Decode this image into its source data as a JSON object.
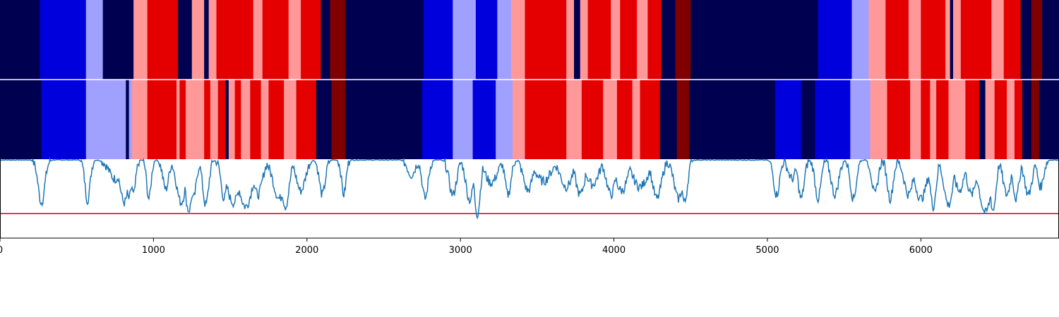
{
  "chart_data": {
    "type": "heatmap",
    "title": "",
    "xlabel": "",
    "ylabel": "",
    "xlim": [
      0,
      6900
    ],
    "x_ticks": [
      0,
      1000,
      2000,
      3000,
      4000,
      5000,
      6000
    ],
    "x_tick_labels": [
      "0",
      "1000",
      "2000",
      "3000",
      "4000",
      "5000",
      "6000"
    ],
    "grid": false,
    "legend": "none",
    "palette": {
      "0": "#000050",
      "1": "#0000dc",
      "2": "#a0a0ff",
      "3": "#ff9999",
      "4": "#e50000",
      "5": "#800000"
    },
    "rows": [
      {
        "name": "",
        "segments": [
          [
            0,
            260,
            0
          ],
          [
            260,
            560,
            1
          ],
          [
            560,
            670,
            2
          ],
          [
            670,
            870,
            0
          ],
          [
            870,
            960,
            3
          ],
          [
            960,
            1160,
            4
          ],
          [
            1160,
            1250,
            0
          ],
          [
            1250,
            1330,
            3
          ],
          [
            1330,
            1360,
            0
          ],
          [
            1360,
            1410,
            3
          ],
          [
            1410,
            1650,
            4
          ],
          [
            1650,
            1710,
            3
          ],
          [
            1710,
            1880,
            4
          ],
          [
            1880,
            1960,
            3
          ],
          [
            1960,
            2090,
            4
          ],
          [
            2090,
            2150,
            0
          ],
          [
            2150,
            2250,
            5
          ],
          [
            2250,
            2760,
            0
          ],
          [
            2760,
            2950,
            1
          ],
          [
            2950,
            3100,
            2
          ],
          [
            3100,
            3240,
            1
          ],
          [
            3240,
            3330,
            2
          ],
          [
            3330,
            3420,
            3
          ],
          [
            3420,
            3690,
            4
          ],
          [
            3690,
            3740,
            3
          ],
          [
            3740,
            3780,
            0
          ],
          [
            3780,
            3830,
            3
          ],
          [
            3830,
            3980,
            4
          ],
          [
            3980,
            4040,
            3
          ],
          [
            4040,
            4150,
            4
          ],
          [
            4150,
            4220,
            3
          ],
          [
            4220,
            4310,
            4
          ],
          [
            4310,
            4400,
            0
          ],
          [
            4400,
            4500,
            5
          ],
          [
            4500,
            5330,
            0
          ],
          [
            5330,
            5550,
            1
          ],
          [
            5550,
            5660,
            2
          ],
          [
            5660,
            5770,
            3
          ],
          [
            5770,
            5920,
            4
          ],
          [
            5920,
            6000,
            3
          ],
          [
            6000,
            6160,
            4
          ],
          [
            6160,
            6190,
            3
          ],
          [
            6190,
            6210,
            0
          ],
          [
            6210,
            6260,
            3
          ],
          [
            6260,
            6460,
            4
          ],
          [
            6460,
            6540,
            3
          ],
          [
            6540,
            6650,
            4
          ],
          [
            6650,
            6720,
            0
          ],
          [
            6720,
            6790,
            5
          ],
          [
            6790,
            6900,
            0
          ]
        ]
      },
      {
        "name": "",
        "segments": [
          [
            0,
            270,
            0
          ],
          [
            270,
            560,
            1
          ],
          [
            560,
            820,
            2
          ],
          [
            820,
            840,
            0
          ],
          [
            840,
            860,
            2
          ],
          [
            860,
            960,
            3
          ],
          [
            960,
            1150,
            4
          ],
          [
            1150,
            1170,
            3
          ],
          [
            1170,
            1210,
            4
          ],
          [
            1210,
            1330,
            3
          ],
          [
            1330,
            1370,
            4
          ],
          [
            1370,
            1420,
            3
          ],
          [
            1420,
            1470,
            4
          ],
          [
            1470,
            1490,
            0
          ],
          [
            1490,
            1530,
            3
          ],
          [
            1530,
            1570,
            4
          ],
          [
            1570,
            1630,
            3
          ],
          [
            1630,
            1700,
            4
          ],
          [
            1700,
            1750,
            3
          ],
          [
            1750,
            1850,
            4
          ],
          [
            1850,
            1930,
            3
          ],
          [
            1930,
            2060,
            4
          ],
          [
            2060,
            2160,
            0
          ],
          [
            2160,
            2250,
            5
          ],
          [
            2250,
            2750,
            0
          ],
          [
            2750,
            2950,
            1
          ],
          [
            2950,
            3080,
            2
          ],
          [
            3080,
            3230,
            1
          ],
          [
            3230,
            3340,
            2
          ],
          [
            3340,
            3420,
            3
          ],
          [
            3420,
            3690,
            4
          ],
          [
            3690,
            3790,
            3
          ],
          [
            3790,
            3930,
            4
          ],
          [
            3930,
            4020,
            3
          ],
          [
            4020,
            4120,
            4
          ],
          [
            4120,
            4170,
            3
          ],
          [
            4170,
            4300,
            4
          ],
          [
            4300,
            4410,
            0
          ],
          [
            4410,
            4490,
            5
          ],
          [
            4490,
            5050,
            0
          ],
          [
            5050,
            5220,
            1
          ],
          [
            5220,
            5310,
            0
          ],
          [
            5310,
            5540,
            1
          ],
          [
            5540,
            5670,
            2
          ],
          [
            5670,
            5780,
            3
          ],
          [
            5780,
            5930,
            4
          ],
          [
            5930,
            6000,
            3
          ],
          [
            6000,
            6060,
            4
          ],
          [
            6060,
            6100,
            3
          ],
          [
            6100,
            6180,
            4
          ],
          [
            6180,
            6290,
            3
          ],
          [
            6290,
            6380,
            4
          ],
          [
            6380,
            6420,
            0
          ],
          [
            6420,
            6480,
            3
          ],
          [
            6480,
            6560,
            4
          ],
          [
            6560,
            6610,
            3
          ],
          [
            6610,
            6660,
            4
          ],
          [
            6660,
            6720,
            0
          ],
          [
            6720,
            6770,
            5
          ],
          [
            6770,
            6900,
            0
          ]
        ]
      }
    ],
    "line": {
      "name": "",
      "color": "#1f77b4",
      "ylim": [
        0,
        1
      ],
      "baseline": 0.99,
      "threshold": {
        "value": 0.31,
        "color": "#e00000"
      },
      "dips": [
        [
          270,
          45,
          0.45
        ],
        [
          570,
          35,
          0.48
        ],
        [
          750,
          80,
          0.75
        ],
        [
          810,
          60,
          0.45
        ],
        [
          840,
          40,
          0.5
        ],
        [
          870,
          30,
          0.55
        ],
        [
          970,
          30,
          0.5
        ],
        [
          1080,
          40,
          0.62
        ],
        [
          1180,
          60,
          0.45
        ],
        [
          1230,
          50,
          0.35
        ],
        [
          1260,
          40,
          0.5
        ],
        [
          1340,
          40,
          0.42
        ],
        [
          1460,
          40,
          0.5
        ],
        [
          1520,
          90,
          0.45
        ],
        [
          1600,
          90,
          0.4
        ],
        [
          1680,
          60,
          0.55
        ],
        [
          1820,
          80,
          0.5
        ],
        [
          1860,
          50,
          0.4
        ],
        [
          1960,
          60,
          0.6
        ],
        [
          2100,
          40,
          0.55
        ],
        [
          2240,
          30,
          0.55
        ],
        [
          2680,
          50,
          0.8
        ],
        [
          2770,
          40,
          0.5
        ],
        [
          2950,
          50,
          0.55
        ],
        [
          3060,
          50,
          0.48
        ],
        [
          3110,
          40,
          0.3
        ],
        [
          3200,
          80,
          0.7
        ],
        [
          3310,
          40,
          0.55
        ],
        [
          3440,
          60,
          0.6
        ],
        [
          3540,
          100,
          0.72
        ],
        [
          3690,
          80,
          0.65
        ],
        [
          3780,
          60,
          0.55
        ],
        [
          3860,
          80,
          0.68
        ],
        [
          3980,
          60,
          0.55
        ],
        [
          4050,
          80,
          0.6
        ],
        [
          4170,
          100,
          0.65
        ],
        [
          4280,
          60,
          0.5
        ],
        [
          4420,
          60,
          0.5
        ],
        [
          4460,
          40,
          0.45
        ],
        [
          5060,
          40,
          0.55
        ],
        [
          5160,
          50,
          0.75
        ],
        [
          5220,
          40,
          0.5
        ],
        [
          5330,
          40,
          0.5
        ],
        [
          5440,
          50,
          0.55
        ],
        [
          5560,
          40,
          0.5
        ],
        [
          5700,
          40,
          0.55
        ],
        [
          5800,
          40,
          0.5
        ],
        [
          5920,
          60,
          0.55
        ],
        [
          6000,
          80,
          0.5
        ],
        [
          6080,
          40,
          0.4
        ],
        [
          6180,
          60,
          0.42
        ],
        [
          6250,
          60,
          0.6
        ],
        [
          6330,
          60,
          0.55
        ],
        [
          6420,
          80,
          0.32
        ],
        [
          6470,
          40,
          0.35
        ],
        [
          6560,
          50,
          0.55
        ],
        [
          6620,
          40,
          0.5
        ],
        [
          6700,
          50,
          0.55
        ],
        [
          6780,
          40,
          0.65
        ]
      ]
    }
  }
}
